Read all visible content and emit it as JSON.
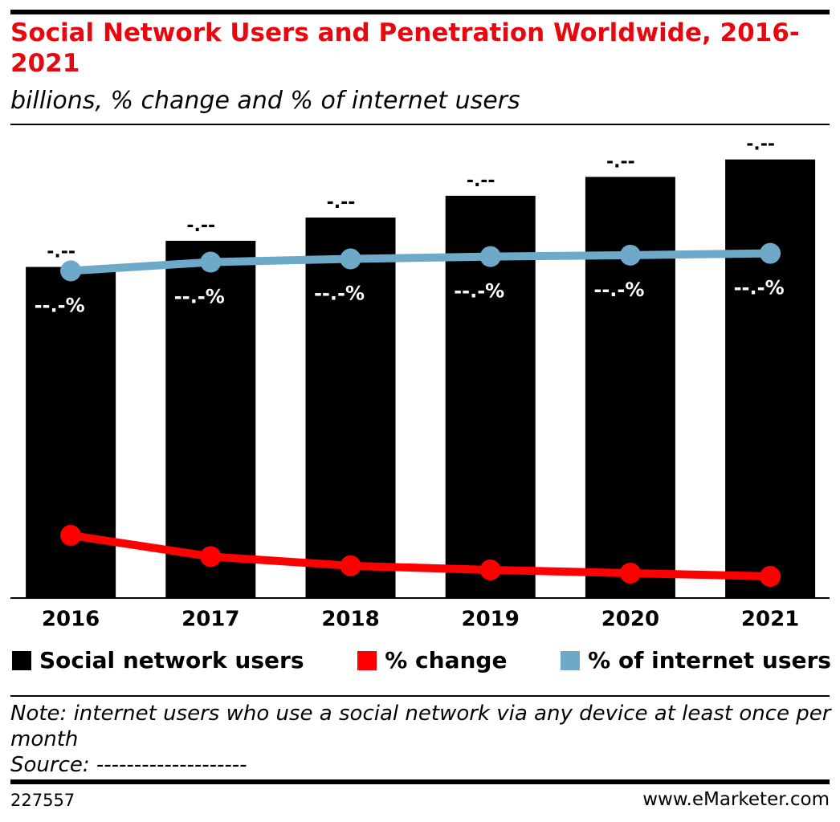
{
  "chart_data": {
    "type": "bar",
    "title": "Social Network Users and Penetration Worldwide, 2016-2021",
    "subtitle": "billions, % change and % of internet users",
    "categories": [
      "2016",
      "2017",
      "2018",
      "2019",
      "2020",
      "2021"
    ],
    "ylim": [
      0,
      3.3
    ],
    "y2lim": [
      0,
      104
    ],
    "series": [
      {
        "name": "Social network users",
        "type": "bar",
        "color": "#000000",
        "values": [
          2.28,
          2.46,
          2.62,
          2.77,
          2.9,
          3.02
        ],
        "value_labels": [
          "-.--",
          "-.--",
          "-.--",
          "-.--",
          "-.--",
          "-.--"
        ]
      },
      {
        "name": "% change",
        "type": "line",
        "axis": "y2",
        "color": "#ff0000",
        "values": [
          13.6,
          9.0,
          7.0,
          6.1,
          5.4,
          4.7
        ],
        "value_labels": [
          "--.-%",
          "-.-%",
          "-.-%",
          "-.-%",
          "-.-%",
          "-.-%"
        ]
      },
      {
        "name": "% of internet users",
        "type": "line",
        "axis": "y2",
        "color": "#6ea9c9",
        "values": [
          71.0,
          72.9,
          73.6,
          74.1,
          74.4,
          74.8
        ],
        "value_labels": [
          "--.-%",
          "--.-%",
          "--.-%",
          "--.-%",
          "--.-%",
          "--.-%"
        ]
      }
    ],
    "note": "Note: internet users who use a social network via any device at least once per month",
    "source": "Source: --------------------",
    "chart_id": "227557",
    "site": "www.eMarketer.com"
  }
}
